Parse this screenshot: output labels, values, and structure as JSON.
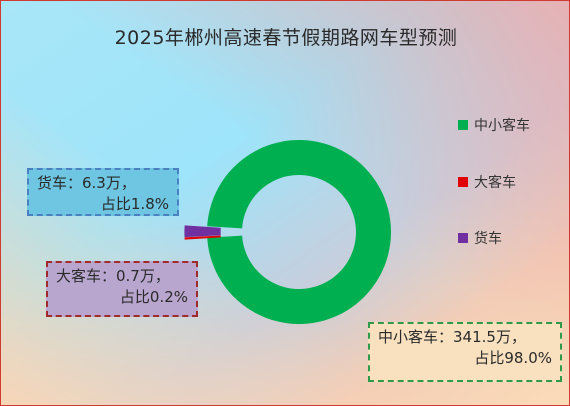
{
  "title": "2025年郴州高速春节假期路网车型预测",
  "chart_data": {
    "type": "pie",
    "donut": true,
    "series": [
      {
        "name": "中小客车",
        "value": 341.5,
        "percent": 98.0,
        "color": "#00b050",
        "exploded": false
      },
      {
        "name": "大客车",
        "value": 0.7,
        "percent": 0.2,
        "color": "#e00000",
        "exploded": true
      },
      {
        "name": "货车",
        "value": 6.3,
        "percent": 1.8,
        "color": "#7030a0",
        "exploded": true
      }
    ],
    "legend": {
      "position": "right"
    }
  },
  "callouts": {
    "truck": {
      "line1": "货车：6.3万，",
      "line2": "占比1.8%"
    },
    "bus": {
      "line1": "大客车：0.7万，",
      "line2": "占比0.2%"
    },
    "small": {
      "line1": "中小客车：341.5万，",
      "line2": "占比98.0%"
    }
  }
}
